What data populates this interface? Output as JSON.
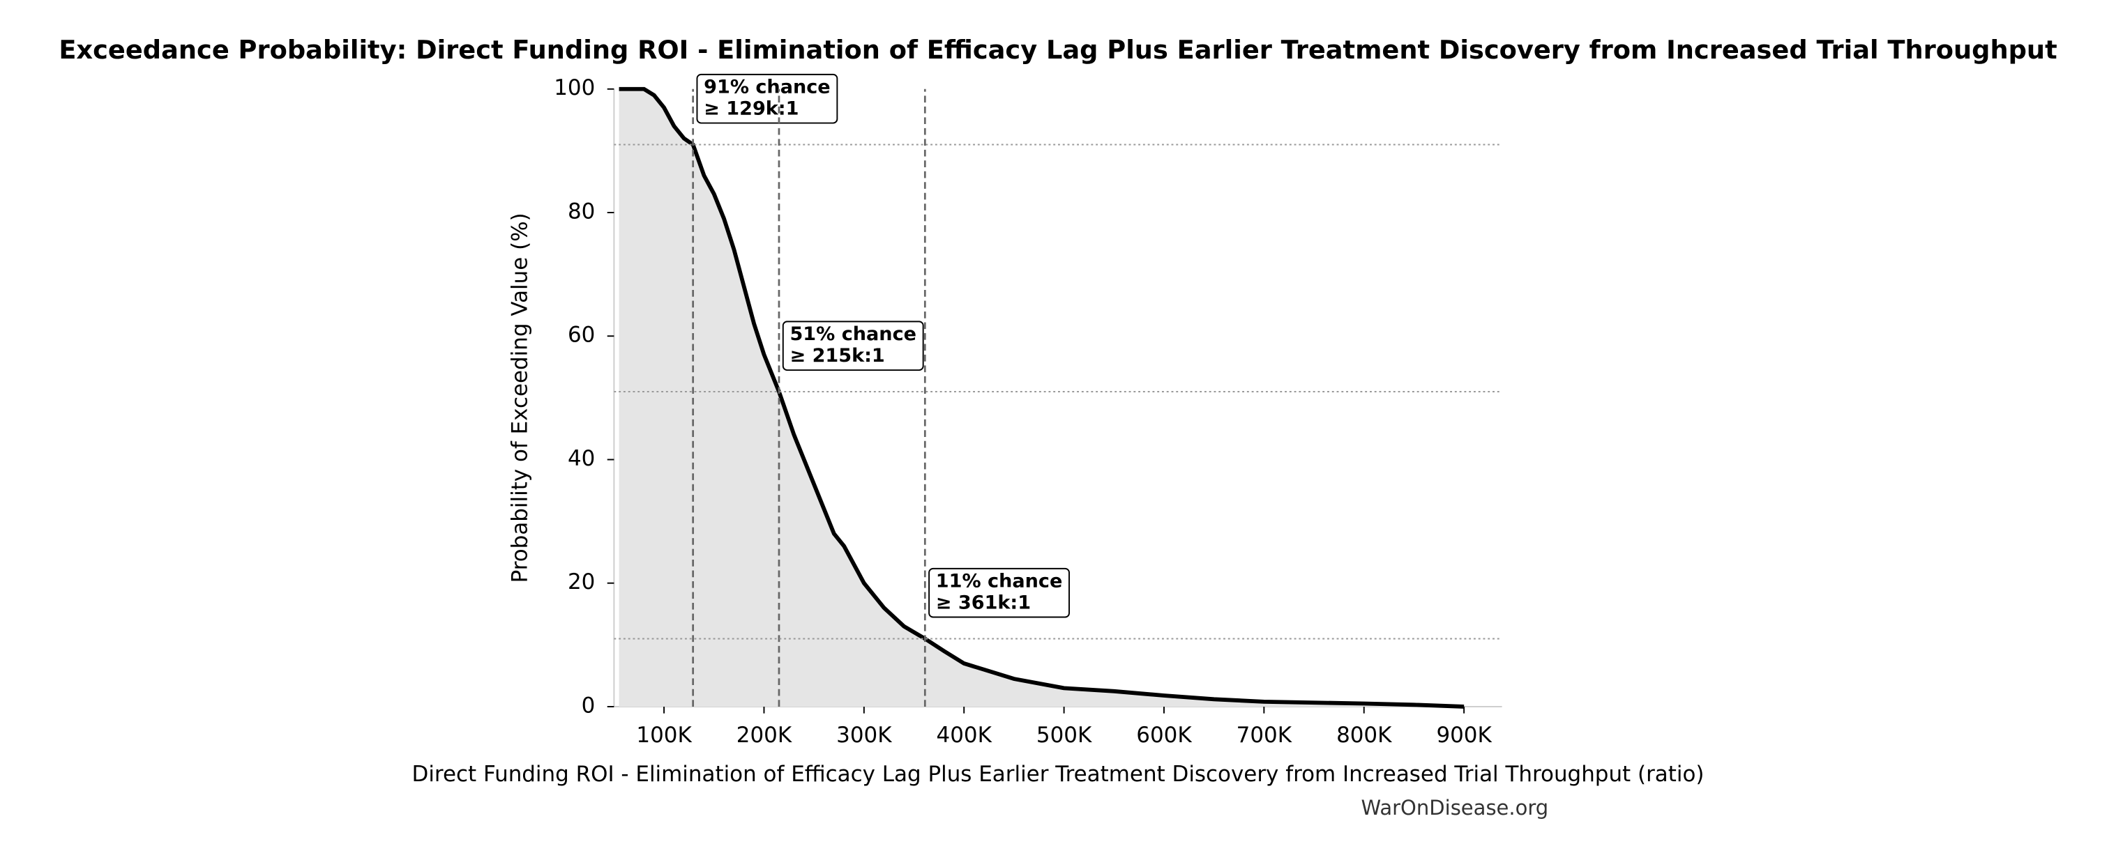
{
  "chart_data": {
    "type": "line",
    "title": "Exceedance Probability: Direct Funding ROI - Elimination of Efficacy Lag Plus Earlier Treatment Discovery from Increased Trial Throughput",
    "x_label": "Direct Funding ROI - Elimination of Efficacy Lag Plus Earlier Treatment Discovery from Increased Trial Throughput (ratio)",
    "y_label": "Probability of Exceeding Value (%)",
    "footer": "WarOnDisease.org",
    "x": [
      55000,
      80000,
      90000,
      100000,
      110000,
      120000,
      129000,
      140000,
      150000,
      160000,
      170000,
      180000,
      190000,
      200000,
      215000,
      230000,
      240000,
      250000,
      260000,
      270000,
      280000,
      290000,
      300000,
      320000,
      340000,
      361000,
      380000,
      400000,
      420000,
      450000,
      500000,
      550000,
      600000,
      650000,
      700000,
      800000,
      850000,
      900000
    ],
    "series": [
      {
        "name": "Exceedance",
        "color": "#000000",
        "fill": "#e5e5e5",
        "values": [
          100,
          100,
          99,
          97,
          94,
          92,
          91,
          86,
          83,
          79,
          74,
          68,
          62,
          57,
          51,
          44,
          40,
          36,
          32,
          28,
          26,
          23,
          20,
          16,
          13,
          11,
          9,
          7,
          6,
          4.5,
          3,
          2.5,
          1.8,
          1.2,
          0.8,
          0.5,
          0.3,
          0
        ]
      }
    ],
    "annotations": [
      {
        "x": 129000,
        "y": 91,
        "lines": [
          "91% chance",
          "≥ 129k:1"
        ]
      },
      {
        "x": 215000,
        "y": 51,
        "lines": [
          "51% chance",
          "≥ 215k:1"
        ]
      },
      {
        "x": 361000,
        "y": 11,
        "lines": [
          "11% chance",
          "≥ 361k:1"
        ]
      }
    ],
    "xlim": [
      50000,
      938000
    ],
    "ylim": [
      0,
      100
    ],
    "xticks": [
      {
        "value": 100000,
        "label": "100K"
      },
      {
        "value": 200000,
        "label": "200K"
      },
      {
        "value": 300000,
        "label": "300K"
      },
      {
        "value": 400000,
        "label": "400K"
      },
      {
        "value": 500000,
        "label": "500K"
      },
      {
        "value": 600000,
        "label": "600K"
      },
      {
        "value": 700000,
        "label": "700K"
      },
      {
        "value": 800000,
        "label": "800K"
      },
      {
        "value": 900000,
        "label": "900K"
      }
    ],
    "yticks": [
      0,
      20,
      40,
      60,
      80,
      100
    ]
  }
}
